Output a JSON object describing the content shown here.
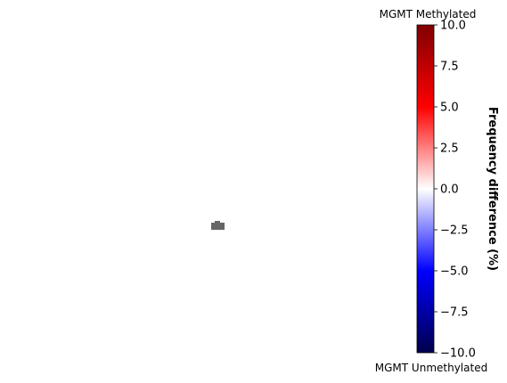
{
  "chart_data": {
    "type": "heatmap",
    "title": "",
    "colorbar": {
      "label": "Frequency difference (%)",
      "top_annotation": "MGMT Methylated",
      "bottom_annotation": "MGMT Unmethylated",
      "range": [
        -10.0,
        10.0
      ],
      "ticks": [
        10.0,
        7.5,
        5.0,
        2.5,
        0.0,
        -2.5,
        -5.0,
        -7.5,
        -10.0
      ],
      "tick_labels": [
        "10.0",
        "7.5",
        "5.0",
        "2.5",
        "0.0",
        "−2.5",
        "−5.0",
        "−7.5",
        "−10.0"
      ],
      "colormap": "seismic",
      "colors": {
        "max": "#7f0000",
        "positive_mid": "#ff0000",
        "zero": "#ffffff",
        "negative_mid": "#0000ff",
        "min": "#00004c"
      }
    },
    "cells": [
      {
        "value": null,
        "color": "#666666"
      }
    ],
    "grid": false,
    "axes_visible": false
  }
}
